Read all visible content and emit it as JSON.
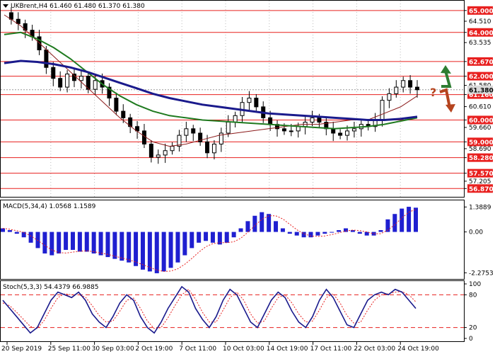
{
  "header": {
    "symbol_line": "UKBrent,H4  61.460 61.480 61.370 61.380",
    "macd_line": "MACD(5,34,4) 1.0568 1.1589",
    "stoch_line": "Stoch(5,3,3) 54.4379 66.9885"
  },
  "colors": {
    "level_line": "#e8201f",
    "candle": "#000000",
    "ma_fast": "#8b1a1a",
    "ma_mid": "#1f7a1f",
    "ma_slow": "#1a1a8c",
    "macd_hist": "#1f1fd0",
    "macd_signal": "#e8201f",
    "stoch_main": "#1a1a8c",
    "stoch_signal": "#e8201f",
    "arrow_up": "#2e7d32",
    "arrow_down": "#b5441f"
  },
  "icons": {
    "up_arrow": "green-zigzag-up-arrow",
    "down_arrow": "brown-zigzag-down-arrow",
    "question": "?"
  },
  "chart_data": [
    {
      "type": "candlestick",
      "title": "UKBrent,H4",
      "ohlc_current": {
        "open": 61.46,
        "high": 61.48,
        "low": 61.37,
        "close": 61.38
      },
      "current_price_label": "61.380",
      "y_ticks": [
        "65.000",
        "64.510",
        "64.000",
        "63.535",
        "62.670",
        "62.000",
        "61.580",
        "61.160",
        "60.610",
        "60.000",
        "59.660",
        "59.000",
        "58.690",
        "58.280",
        "57.570",
        "57.205",
        "56.870"
      ],
      "levels": [
        "65.000",
        "64.000",
        "62.670",
        "62.000",
        "61.160",
        "60.000",
        "59.000",
        "58.280",
        "57.570",
        "56.870"
      ],
      "ylim": [
        56.62,
        65.35
      ],
      "x_labels": [
        "20 Sep 2019",
        "25 Sep 11:00",
        "30 Sep 03:00",
        "2 Oct 19:00",
        "7 Oct 11:00",
        "10 Oct 03:00",
        "14 Oct 19:00",
        "17 Oct 11:00",
        "22 Oct 03:00",
        "24 Oct 19:00"
      ],
      "close_path": [
        64.9,
        64.6,
        64.4,
        64.1,
        63.8,
        63.2,
        62.4,
        61.9,
        61.5,
        62.1,
        61.8,
        62.0,
        61.4,
        61.8,
        61.5,
        61.0,
        60.4,
        60.1,
        59.7,
        59.5,
        58.9,
        58.3,
        58.4,
        58.6,
        58.8,
        59.3,
        59.6,
        59.4,
        59.0,
        58.5,
        58.9,
        59.4,
        59.9,
        60.2,
        60.8,
        61.0,
        60.6,
        60.1,
        59.8,
        59.6,
        59.5,
        59.5,
        59.7,
        59.9,
        60.1,
        59.9,
        59.6,
        59.4,
        59.3,
        59.5,
        59.6,
        59.8,
        59.7,
        60.0,
        60.9,
        61.2,
        61.5,
        61.8,
        61.5,
        61.38
      ],
      "ma_fast": [
        64.8,
        64.3,
        63.6,
        62.9,
        62.2,
        61.5,
        60.8,
        60.1,
        59.5,
        59.0,
        58.8,
        58.9,
        59.1,
        59.3,
        59.4,
        59.5,
        59.6,
        59.7,
        59.8,
        59.8,
        59.9,
        60.0,
        60.0,
        60.3,
        60.6,
        61.1
      ],
      "ma_mid": [
        63.9,
        64.0,
        63.7,
        63.3,
        62.8,
        62.2,
        61.6,
        61.1,
        60.7,
        60.4,
        60.2,
        60.1,
        60.0,
        59.95,
        59.9,
        59.85,
        59.8,
        59.75,
        59.7,
        59.65,
        59.6,
        59.65,
        59.7,
        59.8,
        59.95,
        60.1
      ],
      "ma_slow": [
        62.6,
        62.7,
        62.65,
        62.55,
        62.4,
        62.2,
        61.95,
        61.7,
        61.45,
        61.2,
        61.0,
        60.85,
        60.7,
        60.6,
        60.5,
        60.4,
        60.3,
        60.25,
        60.2,
        60.15,
        60.1,
        60.05,
        60.0,
        60.0,
        60.05,
        60.15
      ],
      "annotations": [
        "green arrow up toward 62.670",
        "brown arrow down toward 61.160",
        "?"
      ]
    },
    {
      "type": "bar",
      "title": "MACD(5,34,4)",
      "values_current": [
        1.0568,
        1.1589
      ],
      "y_ticks": [
        "1.3889",
        "0.00",
        "-2.2753"
      ],
      "ylim": [
        -2.5,
        1.6
      ],
      "histogram": [
        0.2,
        0.1,
        -0.1,
        -0.3,
        -0.6,
        -0.9,
        -1.2,
        -1.3,
        -1.2,
        -1.0,
        -1.0,
        -1.1,
        -1.1,
        -1.2,
        -1.3,
        -1.4,
        -1.5,
        -1.6,
        -1.7,
        -1.9,
        -2.1,
        -2.2,
        -2.3,
        -2.2,
        -2.0,
        -1.7,
        -1.3,
        -0.9,
        -0.6,
        -0.5,
        -0.6,
        -0.7,
        -0.6,
        -0.3,
        0.2,
        0.6,
        0.9,
        1.1,
        1.0,
        0.6,
        0.2,
        -0.1,
        -0.2,
        -0.3,
        -0.3,
        -0.2,
        -0.1,
        0.0,
        0.1,
        0.2,
        0.1,
        -0.1,
        -0.2,
        -0.2,
        0.1,
        0.7,
        1.0,
        1.3,
        1.4,
        1.35
      ]
    },
    {
      "type": "line",
      "title": "Stoch(5,3,3)",
      "values_current": [
        54.4379,
        66.9885
      ],
      "y_ticks": [
        "100",
        "80",
        "20",
        "0"
      ],
      "ylim": [
        0,
        100
      ],
      "levels": [
        80,
        20
      ],
      "series": [
        {
          "values": [
            70,
            55,
            40,
            25,
            10,
            20,
            45,
            70,
            85,
            80,
            75,
            85,
            70,
            45,
            30,
            20,
            40,
            65,
            80,
            70,
            40,
            20,
            10,
            30,
            55,
            75,
            95,
            85,
            55,
            35,
            20,
            40,
            70,
            90,
            80,
            55,
            30,
            20,
            45,
            70,
            85,
            75,
            50,
            30,
            20,
            40,
            70,
            90,
            75,
            50,
            25,
            20,
            45,
            70,
            80,
            85,
            80,
            90,
            85,
            70,
            55
          ]
        },
        {
          "values": [
            65,
            60,
            48,
            35,
            22,
            18,
            33,
            55,
            75,
            82,
            80,
            80,
            76,
            60,
            42,
            30,
            32,
            50,
            70,
            74,
            55,
            32,
            18,
            20,
            38,
            60,
            80,
            90,
            72,
            48,
            30,
            30,
            52,
            75,
            85,
            70,
            45,
            28,
            32,
            55,
            75,
            80,
            65,
            45,
            30,
            32,
            52,
            75,
            82,
            65,
            42,
            28,
            30,
            52,
            70,
            80,
            82,
            85,
            86,
            80,
            67
          ]
        }
      ]
    }
  ]
}
